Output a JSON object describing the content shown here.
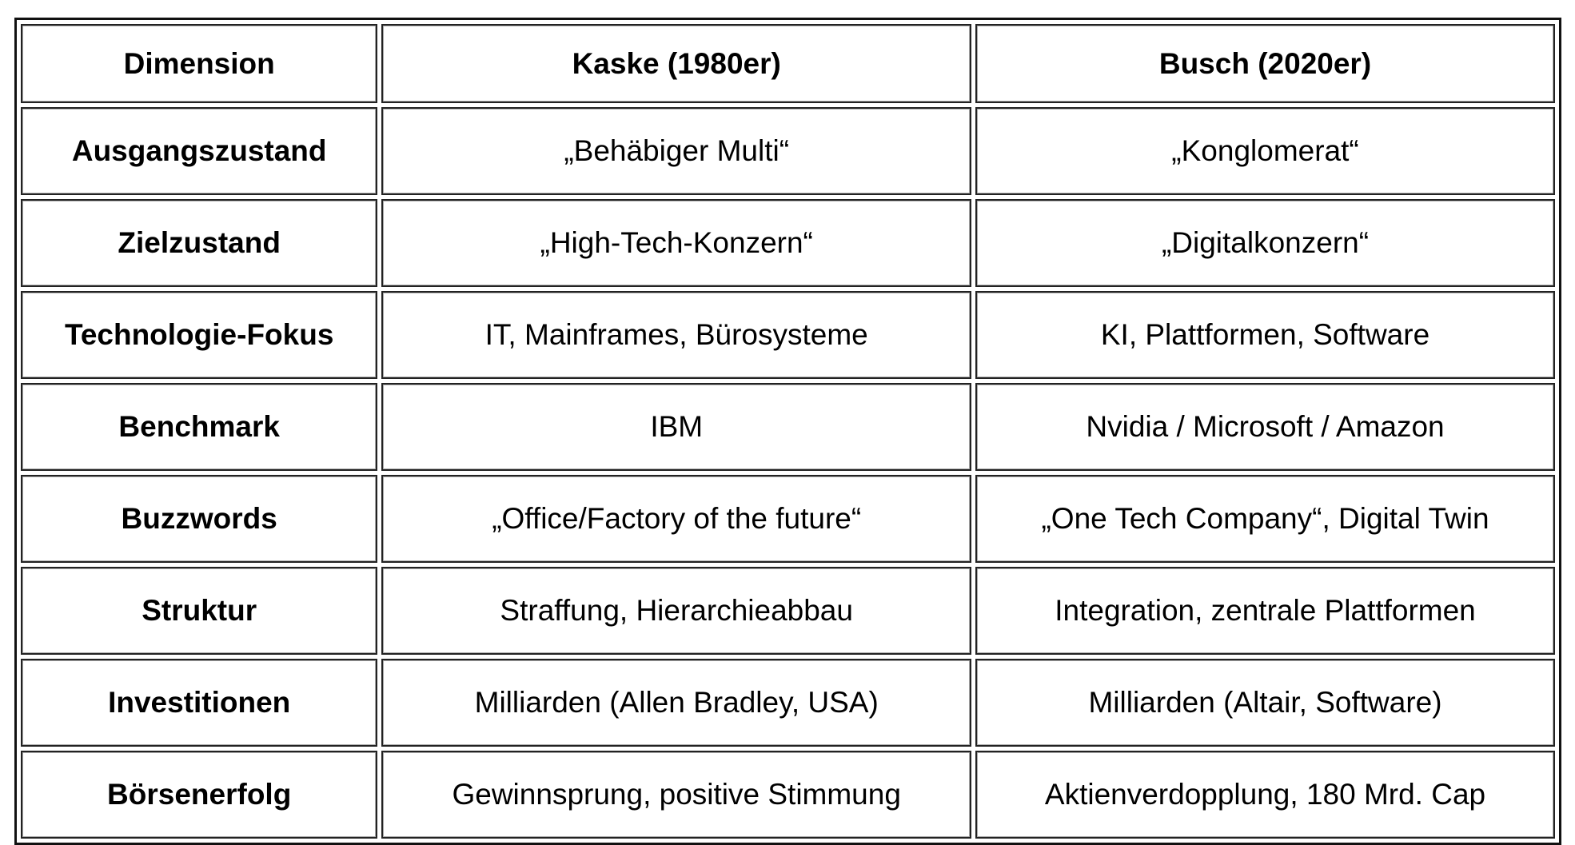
{
  "table": {
    "headers": [
      "Dimension",
      "Kaske (1980er)",
      "Busch (2020er)"
    ],
    "rows": [
      {
        "dimension": "Ausgangszustand",
        "kaske": "„Behäbiger Multi“",
        "busch": "„Konglomerat“"
      },
      {
        "dimension": "Zielzustand",
        "kaske": "„High-Tech-Konzern“",
        "busch": "„Digitalkonzern“"
      },
      {
        "dimension": "Technologie-Fokus",
        "kaske": "IT, Mainframes, Bürosysteme",
        "busch": "KI, Plattformen, Software"
      },
      {
        "dimension": "Benchmark",
        "kaske": "IBM",
        "busch": "Nvidia / Microsoft / Amazon"
      },
      {
        "dimension": "Buzzwords",
        "kaske": "„Office/Factory of the future“",
        "busch": "„One Tech Company“, Digital Twin"
      },
      {
        "dimension": "Struktur",
        "kaske": "Straffung, Hierarchieabbau",
        "busch": "Integration, zentrale Plattformen"
      },
      {
        "dimension": "Investitionen",
        "kaske": "Milliarden (Allen Bradley, USA)",
        "busch": "Milliarden (Altair, Software)"
      },
      {
        "dimension": "Börsenerfolg",
        "kaske": "Gewinnsprung, positive Stimmung",
        "busch": "Aktienverdopplung, 180 Mrd. Cap"
      }
    ]
  }
}
